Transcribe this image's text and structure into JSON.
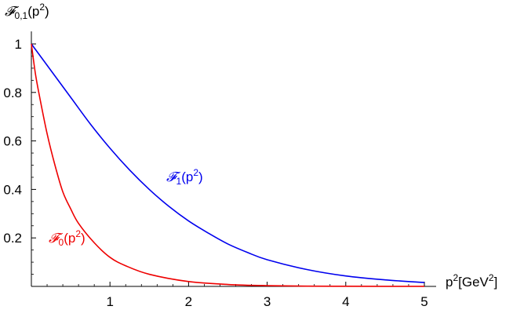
{
  "chart_data": {
    "type": "line",
    "ylabel": {
      "prefix": "𝓕",
      "sub": "0,1",
      "arg": "(p",
      "sup": "2",
      "close": ")"
    },
    "xlabel": {
      "p": "p",
      "sup1": "2",
      "unit_open": "[GeV",
      "sup2": "2",
      "unit_close": "]"
    },
    "xlim": [
      0,
      5
    ],
    "ylim": [
      0,
      1
    ],
    "xticks": [
      {
        "value": 1,
        "label": "1"
      },
      {
        "value": 2,
        "label": "2"
      },
      {
        "value": 3,
        "label": "3"
      },
      {
        "value": 4,
        "label": "4"
      },
      {
        "value": 5,
        "label": "5"
      }
    ],
    "yticks": [
      {
        "value": 0.2,
        "label": "0.2"
      },
      {
        "value": 0.4,
        "label": "0.4"
      },
      {
        "value": 0.6,
        "label": "0.6"
      },
      {
        "value": 0.8,
        "label": "0.8"
      },
      {
        "value": 1.0,
        "label": "1"
      }
    ],
    "series": [
      {
        "label": {
          "prefix": "𝓕",
          "sub": "1",
          "arg": "(p",
          "sup": "2",
          "close": ")"
        },
        "color": "#0000ee",
        "x": [
          0,
          0.25,
          0.5,
          0.75,
          1.0,
          1.25,
          1.5,
          1.75,
          2.0,
          2.25,
          2.5,
          2.75,
          3.0,
          3.5,
          4.0,
          4.5,
          5.0
        ],
        "y": [
          1.0,
          0.89,
          0.78,
          0.67,
          0.57,
          0.48,
          0.4,
          0.33,
          0.27,
          0.22,
          0.175,
          0.14,
          0.11,
          0.07,
          0.043,
          0.027,
          0.016
        ]
      },
      {
        "label": {
          "prefix": "𝓕",
          "sub": "0",
          "arg": "(p",
          "sup": "2",
          "close": ")"
        },
        "color": "#ee0000",
        "x": [
          0,
          0.05,
          0.1,
          0.2,
          0.3,
          0.4,
          0.5,
          0.6,
          0.8,
          1.0,
          1.2,
          1.5,
          2.0,
          2.5,
          3.0,
          3.5,
          4.0,
          4.5,
          5.0
        ],
        "y": [
          1.0,
          0.88,
          0.79,
          0.63,
          0.5,
          0.39,
          0.32,
          0.26,
          0.18,
          0.12,
          0.085,
          0.05,
          0.02,
          0.008,
          0.003,
          0.001,
          0.0005,
          0.0002,
          0.0001
        ]
      }
    ]
  }
}
